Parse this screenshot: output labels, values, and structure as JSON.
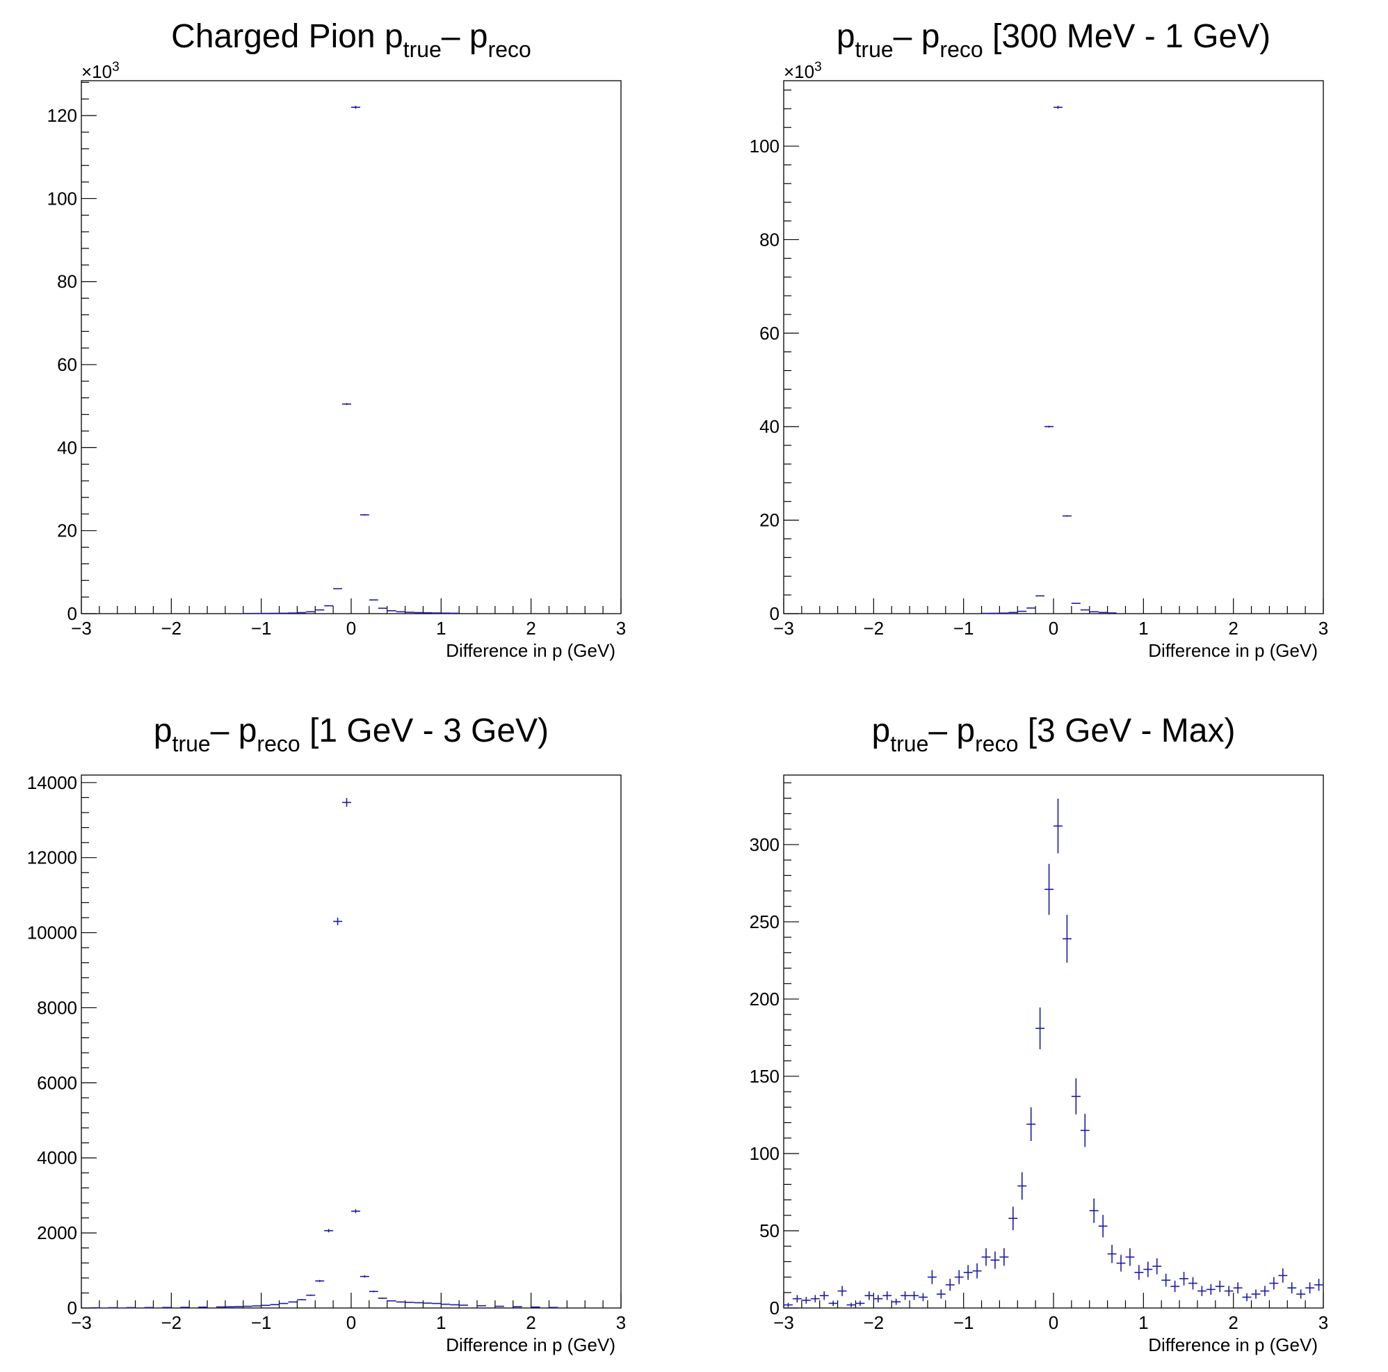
{
  "colors": {
    "marker": "#1a1aa8",
    "axis": "#000000",
    "background": "#ffffff"
  },
  "chart_data": [
    {
      "type": "histogram",
      "title_parts": [
        {
          "text": "Charged Pion p",
          "sub": false
        },
        {
          "text": "true",
          "sub": true
        },
        {
          "text": "– p",
          "sub": false
        },
        {
          "text": "reco",
          "sub": true
        }
      ],
      "xlabel": "Difference in p (GeV)",
      "ylabel": "",
      "xlim": [
        -3,
        3
      ],
      "ylim": [
        0,
        128400
      ],
      "y_exponent": "3",
      "x_ticks": [
        -3,
        -2,
        -1,
        0,
        1,
        2,
        3
      ],
      "x_tick_labels": [
        "−3",
        "−2",
        "−1",
        "0",
        "1",
        "2",
        "3"
      ],
      "y_ticks": [
        0,
        20000,
        40000,
        60000,
        80000,
        100000,
        120000
      ],
      "y_tick_labels": [
        "0",
        "20",
        "40",
        "60",
        "80",
        "100",
        "120"
      ],
      "bin_width": 0.1,
      "x": [
        -1.15,
        -1.05,
        -0.95,
        -0.85,
        -0.75,
        -0.65,
        -0.55,
        -0.45,
        -0.35,
        -0.25,
        -0.15,
        -0.05,
        0.05,
        0.15,
        0.25,
        0.35,
        0.45,
        0.55,
        0.65,
        0.75,
        0.85,
        0.95,
        1.05,
        1.15
      ],
      "values": [
        40,
        50,
        60,
        80,
        100,
        150,
        250,
        450,
        900,
        1900,
        6000,
        50500,
        122000,
        23800,
        3300,
        1300,
        700,
        450,
        330,
        250,
        200,
        160,
        130,
        100
      ],
      "errors": [
        6,
        7,
        8,
        9,
        10,
        12,
        16,
        21,
        30,
        44,
        77,
        225,
        349,
        154,
        57,
        36,
        26,
        21,
        18,
        16,
        14,
        13,
        11,
        10
      ],
      "grid": false,
      "legend": "none"
    },
    {
      "type": "histogram",
      "title_parts": [
        {
          "text": "p",
          "sub": false
        },
        {
          "text": "true",
          "sub": true
        },
        {
          "text": "– p",
          "sub": false
        },
        {
          "text": "reco",
          "sub": true
        },
        {
          "text": " [300 MeV - 1 GeV)",
          "sub": false
        }
      ],
      "xlabel": "Difference in p (GeV)",
      "ylabel": "",
      "xlim": [
        -3,
        3
      ],
      "ylim": [
        0,
        114000
      ],
      "y_exponent": "3",
      "x_ticks": [
        -3,
        -2,
        -1,
        0,
        1,
        2,
        3
      ],
      "x_tick_labels": [
        "−3",
        "−2",
        "−1",
        "0",
        "1",
        "2",
        "3"
      ],
      "y_ticks": [
        0,
        20000,
        40000,
        60000,
        80000,
        100000
      ],
      "y_tick_labels": [
        "0",
        "20",
        "40",
        "60",
        "80",
        "100"
      ],
      "bin_width": 0.1,
      "x": [
        -0.75,
        -0.65,
        -0.55,
        -0.45,
        -0.35,
        -0.25,
        -0.15,
        -0.05,
        0.05,
        0.15,
        0.25,
        0.35,
        0.45,
        0.55,
        0.65
      ],
      "values": [
        60,
        80,
        120,
        250,
        500,
        1200,
        3800,
        40000,
        108300,
        20900,
        2200,
        800,
        400,
        250,
        150
      ],
      "errors": [
        8,
        9,
        11,
        16,
        22,
        35,
        62,
        200,
        329,
        145,
        47,
        28,
        20,
        16,
        12
      ],
      "grid": false,
      "legend": "none"
    },
    {
      "type": "histogram",
      "title_parts": [
        {
          "text": "p",
          "sub": false
        },
        {
          "text": "true",
          "sub": true
        },
        {
          "text": "– p",
          "sub": false
        },
        {
          "text": "reco",
          "sub": true
        },
        {
          "text": " [1 GeV - 3 GeV)",
          "sub": false
        }
      ],
      "xlabel": "Difference in p (GeV)",
      "ylabel": "",
      "xlim": [
        -3,
        3
      ],
      "ylim": [
        0,
        14200
      ],
      "y_exponent": "",
      "x_ticks": [
        -3,
        -2,
        -1,
        0,
        1,
        2,
        3
      ],
      "x_tick_labels": [
        "−3",
        "−2",
        "−1",
        "0",
        "1",
        "2",
        "3"
      ],
      "y_ticks": [
        0,
        2000,
        4000,
        6000,
        8000,
        10000,
        12000,
        14000
      ],
      "y_tick_labels": [
        "0",
        "2000",
        "4000",
        "6000",
        "8000",
        "10000",
        "12000",
        "14000"
      ],
      "bin_width": 0.1,
      "x": [
        -2.85,
        -2.65,
        -2.45,
        -2.25,
        -2.05,
        -1.85,
        -1.65,
        -1.45,
        -1.35,
        -1.25,
        -1.15,
        -1.05,
        -0.95,
        -0.85,
        -0.75,
        -0.65,
        -0.55,
        -0.45,
        -0.35,
        -0.25,
        -0.15,
        -0.05,
        0.05,
        0.15,
        0.25,
        0.35,
        0.45,
        0.55,
        0.65,
        0.75,
        0.85,
        0.95,
        1.05,
        1.15,
        1.25,
        1.45,
        1.65,
        1.85,
        2.05,
        2.25
      ],
      "values": [
        5,
        8,
        10,
        12,
        15,
        18,
        22,
        28,
        32,
        38,
        45,
        55,
        70,
        90,
        120,
        160,
        220,
        340,
        720,
        2060,
        10300,
        13470,
        2580,
        840,
        440,
        260,
        190,
        160,
        150,
        140,
        130,
        120,
        100,
        85,
        75,
        60,
        45,
        35,
        25,
        15
      ],
      "errors": [
        2,
        3,
        3,
        3,
        4,
        4,
        5,
        5,
        6,
        6,
        7,
        7,
        8,
        9,
        11,
        13,
        15,
        18,
        27,
        45,
        101,
        116,
        51,
        29,
        21,
        16,
        14,
        13,
        12,
        12,
        11,
        11,
        10,
        9,
        9,
        8,
        7,
        6,
        5,
        4
      ],
      "grid": false,
      "legend": "none"
    },
    {
      "type": "histogram",
      "title_parts": [
        {
          "text": "p",
          "sub": false
        },
        {
          "text": "true",
          "sub": true
        },
        {
          "text": "– p",
          "sub": false
        },
        {
          "text": "reco",
          "sub": true
        },
        {
          "text": " [3 GeV - Max)",
          "sub": false
        }
      ],
      "xlabel": "Difference in p (GeV)",
      "ylabel": "",
      "xlim": [
        -3,
        3
      ],
      "ylim": [
        0,
        345
      ],
      "y_exponent": "",
      "x_ticks": [
        -3,
        -2,
        -1,
        0,
        1,
        2,
        3
      ],
      "x_tick_labels": [
        "−3",
        "−2",
        "−1",
        "0",
        "1",
        "2",
        "3"
      ],
      "y_ticks": [
        0,
        50,
        100,
        150,
        200,
        250,
        300
      ],
      "y_tick_labels": [
        "0",
        "50",
        "100",
        "150",
        "200",
        "250",
        "300"
      ],
      "bin_width": 0.1,
      "x": [
        -2.95,
        -2.85,
        -2.75,
        -2.65,
        -2.55,
        -2.45,
        -2.35,
        -2.25,
        -2.15,
        -2.05,
        -1.95,
        -1.85,
        -1.75,
        -1.65,
        -1.55,
        -1.45,
        -1.35,
        -1.25,
        -1.15,
        -1.05,
        -0.95,
        -0.85,
        -0.75,
        -0.65,
        -0.55,
        -0.45,
        -0.35,
        -0.25,
        -0.15,
        -0.05,
        0.05,
        0.15,
        0.25,
        0.35,
        0.45,
        0.55,
        0.65,
        0.75,
        0.85,
        0.95,
        1.05,
        1.15,
        1.25,
        1.35,
        1.45,
        1.55,
        1.65,
        1.75,
        1.85,
        1.95,
        2.05,
        2.15,
        2.25,
        2.35,
        2.45,
        2.55,
        2.65,
        2.75,
        2.85,
        2.95
      ],
      "values": [
        2,
        6,
        5,
        6,
        8,
        3,
        11,
        2,
        3,
        8,
        6,
        8,
        4,
        8,
        8,
        7,
        20,
        9,
        15,
        20,
        23,
        24,
        33,
        31,
        33,
        58,
        79,
        119,
        181,
        271,
        312,
        239,
        137,
        115,
        63,
        53,
        35,
        29,
        33,
        23,
        25,
        27,
        18,
        14,
        19,
        16,
        11,
        12,
        14,
        11,
        13,
        7,
        9,
        11,
        16,
        21,
        13,
        9,
        13,
        15
      ],
      "errors": [
        1.4,
        2.4,
        2.2,
        2.4,
        2.8,
        1.7,
        3.3,
        1.4,
        1.7,
        2.8,
        2.4,
        2.8,
        2.0,
        2.8,
        2.8,
        2.6,
        4.5,
        3.0,
        3.9,
        4.5,
        4.8,
        4.9,
        5.7,
        5.6,
        5.7,
        7.6,
        8.9,
        10.9,
        13.5,
        16.5,
        17.7,
        15.5,
        11.7,
        10.7,
        7.9,
        7.3,
        5.9,
        5.4,
        5.7,
        4.8,
        5.0,
        5.2,
        4.2,
        3.7,
        4.4,
        4.0,
        3.3,
        3.5,
        3.7,
        3.3,
        3.6,
        2.6,
        3.0,
        3.3,
        4.0,
        4.6,
        3.6,
        3.0,
        3.6,
        3.9
      ],
      "grid": false,
      "legend": "none"
    }
  ]
}
